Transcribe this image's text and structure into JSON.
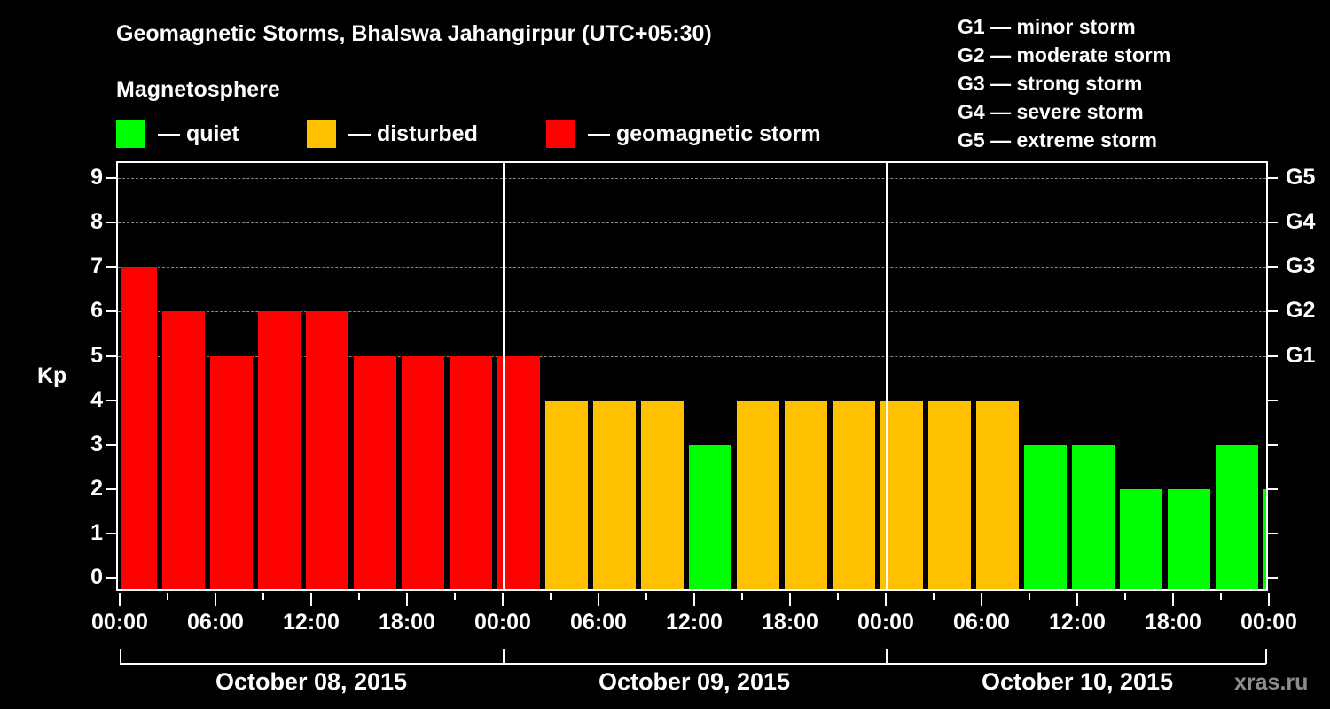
{
  "header": {
    "title": "Geomagnetic Storms, Bhalswa Jahangirpur (UTC+05:30)",
    "subtitle": "Magnetosphere"
  },
  "legend": [
    {
      "label": "— quiet",
      "color": "#00ff00"
    },
    {
      "label": "— disturbed",
      "color": "#ffc000"
    },
    {
      "label": "— geomagnetic storm",
      "color": "#ff0000"
    }
  ],
  "g_scale_legend": [
    "G1 — minor storm",
    "G2 — moderate storm",
    "G3 — strong storm",
    "G4 — severe storm",
    "G5 — extreme storm"
  ],
  "axis": {
    "ylabel": "Kp",
    "yticks": [
      "0",
      "1",
      "2",
      "3",
      "4",
      "5",
      "6",
      "7",
      "8",
      "9"
    ],
    "g_ticks": [
      "G1",
      "G2",
      "G3",
      "G4",
      "G5"
    ],
    "xticks": [
      "00:00",
      "06:00",
      "12:00",
      "18:00",
      "00:00",
      "06:00",
      "12:00",
      "18:00",
      "00:00",
      "06:00",
      "12:00",
      "18:00",
      "00:00"
    ],
    "dates": [
      "October 08, 2015",
      "October 09, 2015",
      "October 10, 2015"
    ]
  },
  "watermark": "xras.ru",
  "chart_data": {
    "type": "bar",
    "title": "Geomagnetic Storms, Bhalswa Jahangirpur (UTC+05:30)",
    "subtitle": "Magnetosphere",
    "xlabel": "",
    "ylabel": "Kp",
    "ylim": [
      0,
      9
    ],
    "x_range": [
      "October 08, 2015 00:00",
      "October 11, 2015 00:00"
    ],
    "bar_interval_hours": 3,
    "first_bar_start_local": "October 07, 2015 23:30",
    "categories": [
      "08 01:30",
      "08 04:30",
      "08 07:30",
      "08 10:30",
      "08 13:30",
      "08 16:30",
      "08 19:30",
      "08 22:30",
      "09 01:30",
      "09 04:30",
      "09 07:30",
      "09 10:30",
      "09 13:30",
      "09 16:30",
      "09 19:30",
      "09 22:30",
      "10 01:30",
      "10 04:30",
      "10 07:30",
      "10 10:30",
      "10 13:30",
      "10 16:30",
      "10 19:30",
      "10 22:30",
      "11 01:30"
    ],
    "values": [
      7,
      6,
      5,
      6,
      6,
      5,
      5,
      5,
      5,
      4,
      4,
      4,
      3,
      4,
      4,
      4,
      4,
      4,
      4,
      3,
      3,
      2,
      2,
      3,
      2
    ],
    "colors": [
      "storm",
      "storm",
      "storm",
      "storm",
      "storm",
      "storm",
      "storm",
      "storm",
      "storm",
      "disturbed",
      "disturbed",
      "disturbed",
      "quiet",
      "disturbed",
      "disturbed",
      "disturbed",
      "disturbed",
      "disturbed",
      "disturbed",
      "quiet",
      "quiet",
      "quiet",
      "quiet",
      "quiet",
      "quiet"
    ],
    "color_map": {
      "quiet": "#00ff00",
      "disturbed": "#ffc000",
      "storm": "#ff0000"
    },
    "g_levels": {
      "G1": 5,
      "G2": 6,
      "G3": 7,
      "G4": 8,
      "G5": 9
    },
    "grid": "dashed horizontal at Kp 5–9",
    "legend_position": "top"
  }
}
